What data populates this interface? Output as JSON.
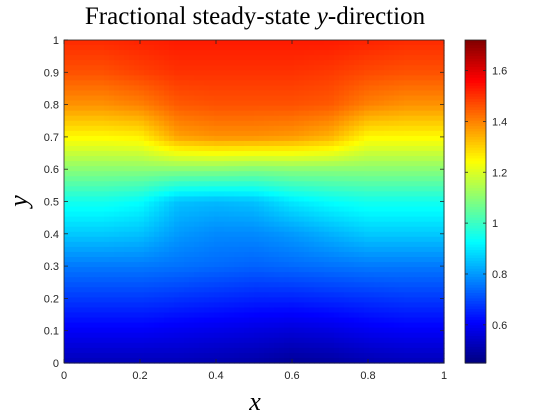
{
  "chart_data": {
    "type": "heatmap",
    "title": "Fractional steady-state y-direction",
    "title_parts": {
      "before": "Fractional steady-state ",
      "var": "y",
      "after": "-direction"
    },
    "xlabel": "x",
    "ylabel": "y",
    "xlim": [
      0,
      1
    ],
    "ylim": [
      0,
      1
    ],
    "x_ticks": [
      "0",
      "0.2",
      "0.4",
      "0.6",
      "0.8",
      "1"
    ],
    "x_tick_values": [
      0,
      0.2,
      0.4,
      0.6,
      0.8,
      1
    ],
    "y_ticks": [
      "0",
      "0.1",
      "0.2",
      "0.3",
      "0.4",
      "0.5",
      "0.6",
      "0.7",
      "0.8",
      "0.9",
      "1"
    ],
    "y_tick_values": [
      0,
      0.1,
      0.2,
      0.3,
      0.4,
      0.5,
      0.6,
      0.7,
      0.8,
      0.9,
      1
    ],
    "colorbar": {
      "colormap": "jet",
      "clim": [
        0.45,
        1.72
      ],
      "ticks": [
        "0.6",
        "0.8",
        "1",
        "1.2",
        "1.4",
        "1.6"
      ],
      "tick_values": [
        0.6,
        0.8,
        1.0,
        1.2,
        1.4,
        1.6
      ]
    },
    "grid": false,
    "field": {
      "x": [
        0,
        0.1,
        0.2,
        0.3,
        0.4,
        0.5,
        0.6,
        0.7,
        0.8,
        0.9,
        1.0
      ],
      "y": [
        0,
        0.1,
        0.2,
        0.3,
        0.4,
        0.5,
        0.6,
        0.7,
        0.8,
        0.9,
        1.0
      ],
      "values": [
        [
          0.52,
          0.52,
          0.52,
          0.52,
          0.51,
          0.5,
          0.48,
          0.49,
          0.51,
          0.52,
          0.52
        ],
        [
          0.6,
          0.6,
          0.6,
          0.59,
          0.58,
          0.57,
          0.56,
          0.57,
          0.59,
          0.6,
          0.6
        ],
        [
          0.68,
          0.68,
          0.68,
          0.67,
          0.66,
          0.65,
          0.65,
          0.66,
          0.67,
          0.68,
          0.68
        ],
        [
          0.76,
          0.76,
          0.76,
          0.75,
          0.74,
          0.73,
          0.74,
          0.75,
          0.76,
          0.76,
          0.76
        ],
        [
          0.86,
          0.86,
          0.85,
          0.8,
          0.78,
          0.78,
          0.8,
          0.83,
          0.86,
          0.86,
          0.86
        ],
        [
          0.95,
          0.95,
          0.93,
          0.85,
          0.84,
          0.85,
          0.9,
          0.93,
          0.95,
          0.95,
          0.95
        ],
        [
          1.1,
          1.1,
          1.1,
          1.1,
          1.1,
          1.09,
          1.1,
          1.1,
          1.1,
          1.1,
          1.1
        ],
        [
          1.25,
          1.25,
          1.26,
          1.36,
          1.38,
          1.38,
          1.37,
          1.34,
          1.25,
          1.25,
          1.25
        ],
        [
          1.38,
          1.38,
          1.4,
          1.45,
          1.46,
          1.46,
          1.46,
          1.45,
          1.4,
          1.38,
          1.38
        ],
        [
          1.46,
          1.46,
          1.48,
          1.5,
          1.5,
          1.5,
          1.5,
          1.49,
          1.47,
          1.46,
          1.46
        ],
        [
          1.51,
          1.51,
          1.52,
          1.53,
          1.53,
          1.53,
          1.53,
          1.53,
          1.52,
          1.51,
          1.51
        ]
      ]
    }
  }
}
